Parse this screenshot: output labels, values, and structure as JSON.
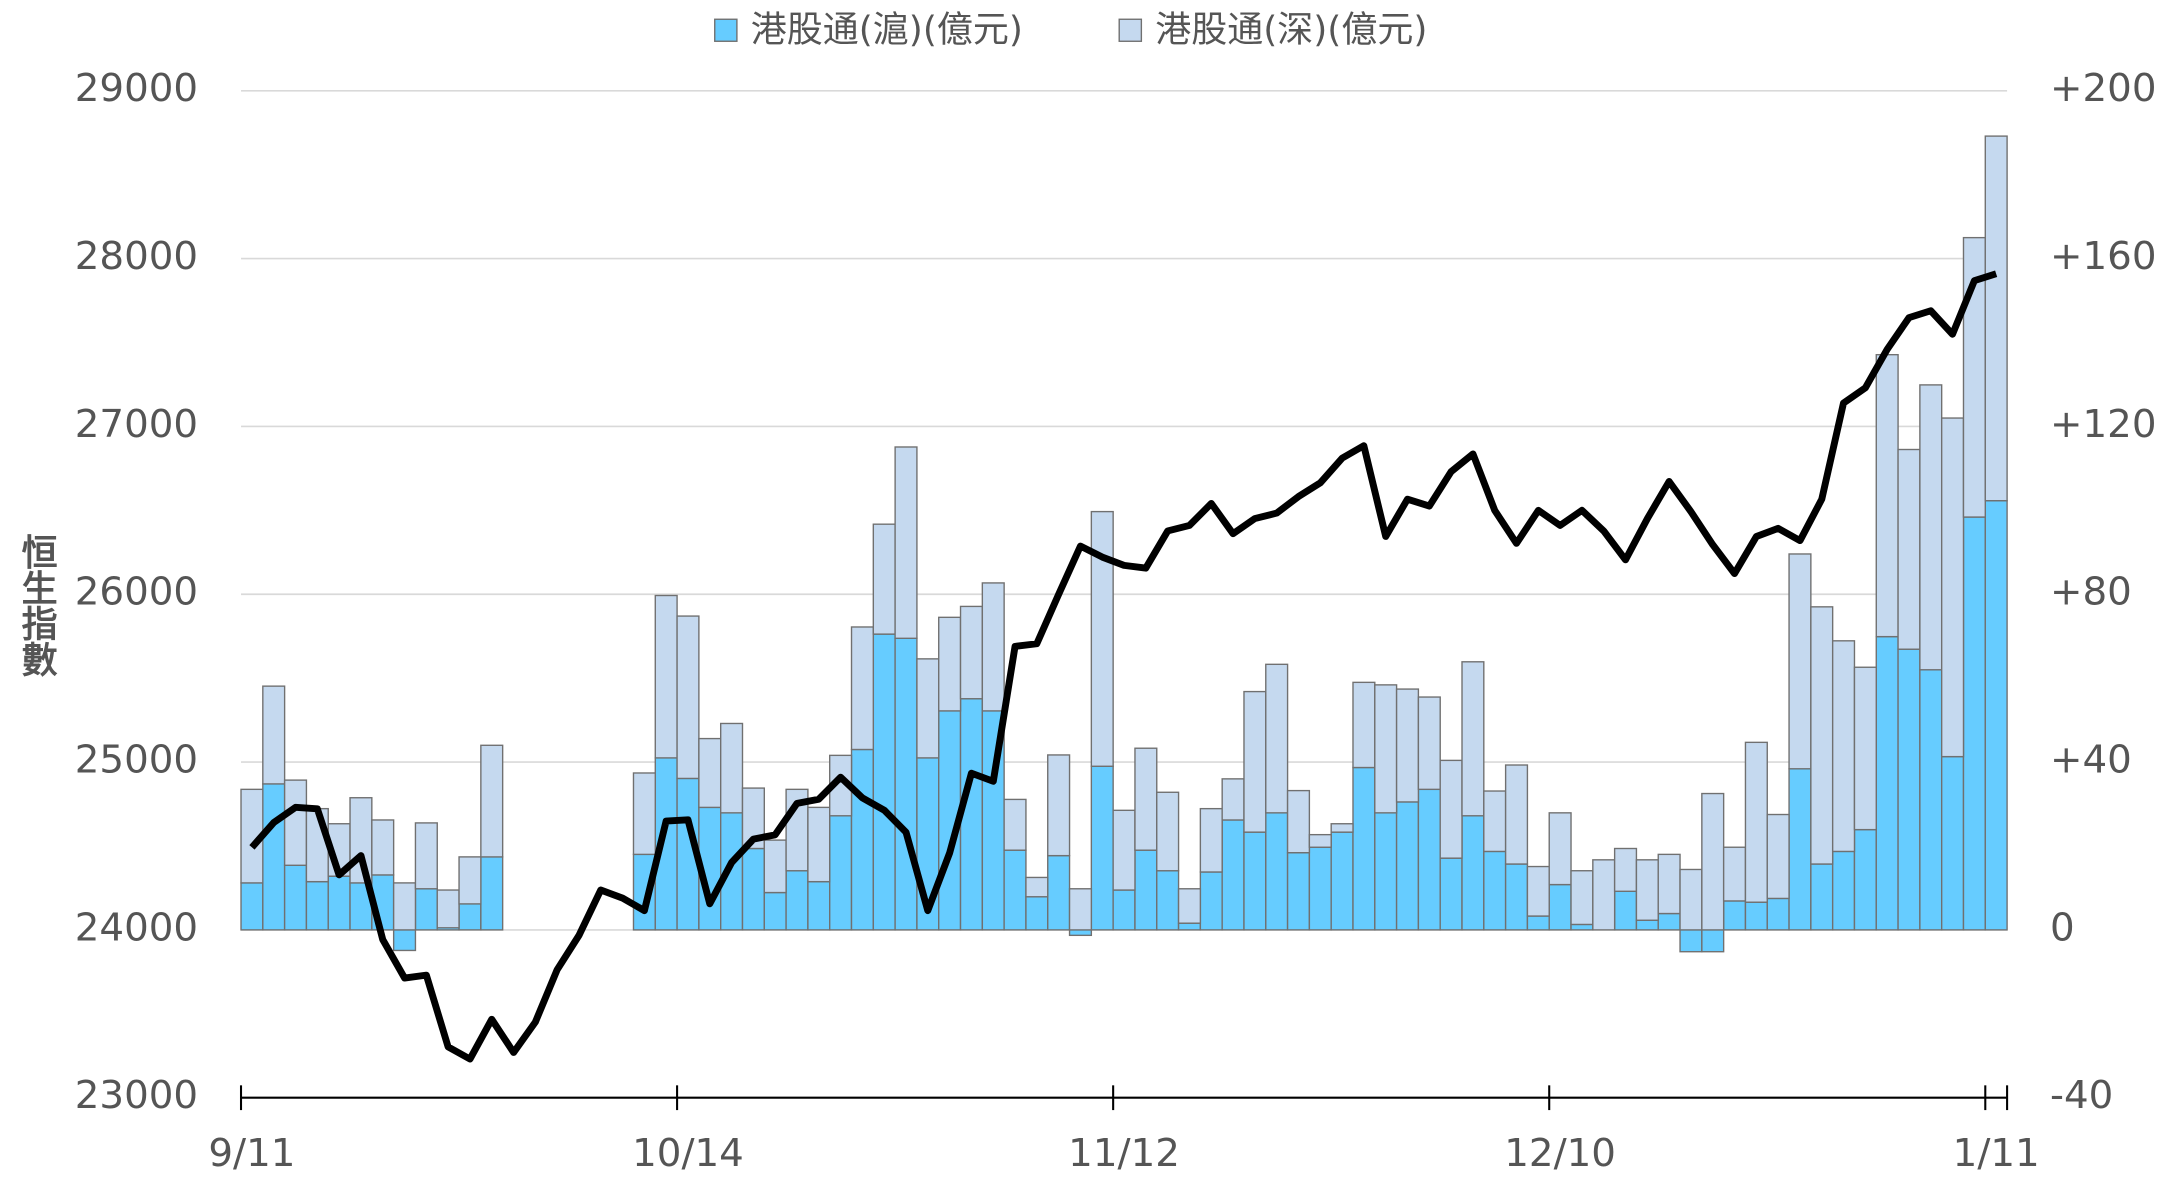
{
  "chart_data": {
    "type": "bar",
    "y_label": "恒生指數",
    "categories": [
      "9/11",
      null,
      null,
      null,
      null,
      null,
      null,
      null,
      null,
      null,
      null,
      null,
      null,
      null,
      null,
      null,
      null,
      null,
      null,
      null,
      "10/14",
      null,
      null,
      null,
      null,
      null,
      null,
      null,
      null,
      null,
      null,
      null,
      null,
      null,
      null,
      null,
      null,
      null,
      null,
      null,
      "11/12",
      null,
      null,
      null,
      null,
      null,
      null,
      null,
      null,
      null,
      null,
      null,
      null,
      null,
      null,
      null,
      null,
      null,
      null,
      null,
      "12/10",
      null,
      null,
      null,
      null,
      null,
      null,
      null,
      null,
      null,
      null,
      null,
      null,
      null,
      null,
      null,
      null,
      null,
      null,
      null,
      "1/11"
    ],
    "series": [
      {
        "name": "港股通(滬)(億元)",
        "type": "bar",
        "axis": "y2",
        "color": "#66ccff",
        "values": [
          11.2,
          34.8,
          15.4,
          11.5,
          12.8,
          11.2,
          13.1,
          -4.9,
          9.8,
          0.5,
          6.2,
          17.4,
          null,
          null,
          null,
          null,
          null,
          null,
          18,
          41,
          36.1,
          29.2,
          27.9,
          19.4,
          8.9,
          14.1,
          11.5,
          27.2,
          43,
          70.5,
          69.5,
          41,
          52.2,
          55.1,
          52.2,
          19,
          7.9,
          17.7,
          -1.3,
          39,
          9.5,
          19,
          14.1,
          1.6,
          13.8,
          26.2,
          23.3,
          27.9,
          18.4,
          19.7,
          23.3,
          38.7,
          27.9,
          30.5,
          33.5,
          17.1,
          27.2,
          18.7,
          15.7,
          3.3,
          10.8,
          1.3,
          0,
          9.2,
          2.3,
          3.9,
          -5.2,
          -5.2,
          6.9,
          6.6,
          7.5,
          38.4,
          15.7,
          18.7,
          23.9,
          69.9,
          66.9,
          62,
          41.3,
          98.4,
          102.3
        ]
      },
      {
        "name": "港股通(深)(億元)",
        "type": "bar",
        "axis": "y2",
        "color": "#c5d9ef",
        "values": [
          22.3,
          23.3,
          20.3,
          17.4,
          12.5,
          20.3,
          13.1,
          11.2,
          15.7,
          9,
          11.2,
          26.6,
          null,
          null,
          null,
          null,
          null,
          null,
          19.4,
          38.7,
          38.7,
          16.4,
          21.3,
          14.4,
          12.5,
          19.4,
          17.7,
          14.4,
          29.2,
          26.2,
          45.6,
          23.6,
          22.3,
          22,
          30.5,
          12.1,
          4.6,
          24,
          9.8,
          60.7,
          19,
          24.3,
          18.7,
          8.2,
          15.1,
          9.8,
          33.5,
          35.4,
          14.8,
          3,
          2,
          20.3,
          30.5,
          26.9,
          22,
          23.3,
          36.7,
          14.4,
          23.6,
          11.8,
          17.1,
          12.8,
          16.7,
          10.2,
          14.4,
          14.1,
          14.4,
          32.5,
          12.8,
          38.1,
          20,
          51.2,
          61.3,
          50.2,
          38.7,
          67.2,
          47.6,
          67.9,
          80.7,
          66.6,
          86.9
        ]
      },
      {
        "type": "line",
        "axis": "y",
        "color": "#000000",
        "values": [
          24492,
          24639,
          24730,
          24721,
          24328,
          24443,
          23943,
          23713,
          23730,
          23303,
          23230,
          23467,
          23270,
          23451,
          23762,
          23967,
          24238,
          24189,
          24115,
          24648,
          24656,
          24156,
          24402,
          24541,
          24566,
          24754,
          24779,
          24910,
          24787,
          24713,
          24582,
          24115,
          24459,
          24934,
          24885,
          25689,
          25705,
          26000,
          26287,
          26221,
          26172,
          26156,
          26377,
          26410,
          26541,
          26361,
          26451,
          26484,
          26582,
          26664,
          26811,
          26885,
          26344,
          26566,
          26525,
          26730,
          26836,
          26500,
          26303,
          26500,
          26410,
          26500,
          26377,
          26205,
          26451,
          26672,
          26492,
          26295,
          26123,
          26344,
          26393,
          26320,
          26566,
          27139,
          27230,
          27459,
          27648,
          27689,
          27549,
          27869,
          27910
        ]
      }
    ],
    "ylim": [
      23000,
      29000
    ],
    "yticks": [
      23000,
      24000,
      25000,
      26000,
      27000,
      28000,
      29000
    ],
    "y2lim": [
      -40,
      200
    ],
    "y2ticks": [
      -40,
      0,
      {
        "value": 40,
        "label": "+40"
      },
      {
        "value": 80,
        "label": "+80"
      },
      {
        "value": 120,
        "label": "+120"
      },
      {
        "value": 160,
        "label": "+160"
      },
      {
        "value": 200,
        "label": "+200"
      }
    ],
    "grid": true,
    "legend": "top"
  }
}
